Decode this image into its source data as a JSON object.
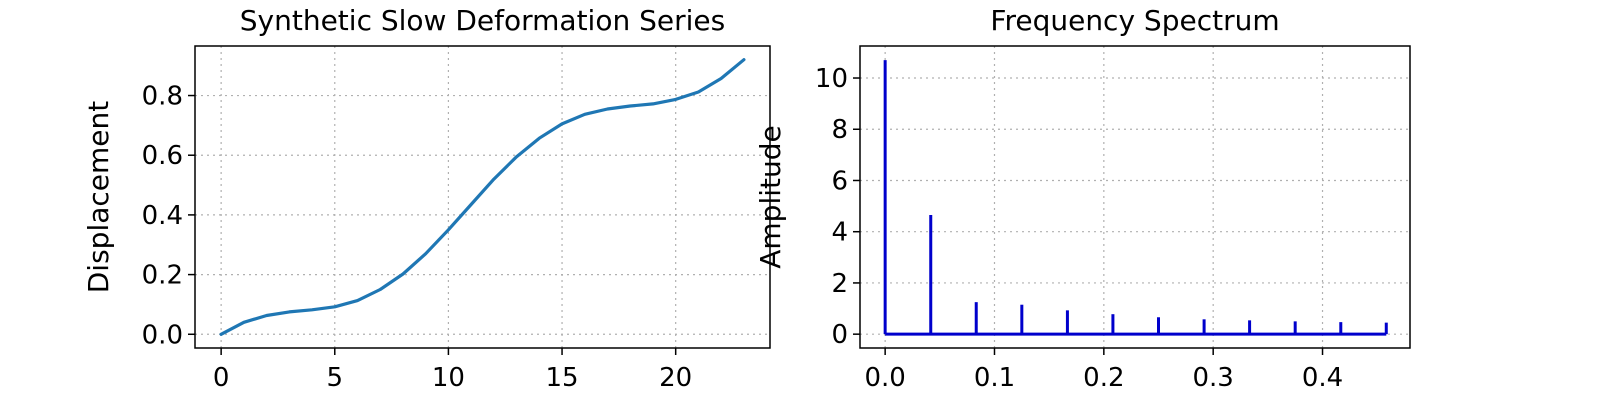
{
  "chart_data": [
    {
      "type": "line",
      "title": "Synthetic Slow Deformation Series",
      "xlabel": "",
      "ylabel": "Displacement",
      "xlim": [
        -1.15,
        24.15
      ],
      "ylim": [
        -0.046,
        0.966
      ],
      "xticks": [
        0,
        5,
        10,
        15,
        20
      ],
      "xtick_labels": [
        "0",
        "5",
        "10",
        "15",
        "20"
      ],
      "yticks": [
        0.0,
        0.2,
        0.4,
        0.6,
        0.8
      ],
      "ytick_labels": [
        "0.0",
        "0.2",
        "0.4",
        "0.6",
        "0.8"
      ],
      "grid": true,
      "color": "#1f77b4",
      "series": [
        {
          "x": [
            0,
            1,
            2,
            3,
            4,
            5,
            6,
            7,
            8,
            9,
            10,
            11,
            12,
            13,
            14,
            15,
            16,
            17,
            18,
            19,
            20,
            21,
            22,
            23
          ],
          "values": [
            0.0,
            0.04,
            0.063,
            0.075,
            0.082,
            0.092,
            0.113,
            0.15,
            0.202,
            0.27,
            0.35,
            0.435,
            0.52,
            0.595,
            0.657,
            0.705,
            0.737,
            0.755,
            0.765,
            0.772,
            0.787,
            0.812,
            0.857,
            0.92
          ]
        }
      ]
    },
    {
      "type": "stem",
      "title": "Frequency Spectrum",
      "xlabel": "",
      "ylabel": "Amplitude",
      "xlim": [
        -0.023,
        0.48
      ],
      "ylim": [
        -0.54,
        11.25
      ],
      "xticks": [
        0.0,
        0.1,
        0.2,
        0.3,
        0.4
      ],
      "xtick_labels": [
        "0.0",
        "0.1",
        "0.2",
        "0.3",
        "0.4"
      ],
      "yticks": [
        0,
        2,
        4,
        6,
        8,
        10
      ],
      "ytick_labels": [
        "0",
        "2",
        "4",
        "6",
        "8",
        "10"
      ],
      "grid": true,
      "color": "#0000cc",
      "baseline_color": "#0000cc",
      "series": [
        {
          "x": [
            0.0,
            0.0417,
            0.0833,
            0.125,
            0.1667,
            0.2083,
            0.25,
            0.2917,
            0.3333,
            0.375,
            0.4167,
            0.4583
          ],
          "values": [
            10.7,
            4.65,
            1.25,
            1.15,
            0.93,
            0.78,
            0.66,
            0.58,
            0.54,
            0.5,
            0.47,
            0.45
          ]
        }
      ]
    }
  ]
}
